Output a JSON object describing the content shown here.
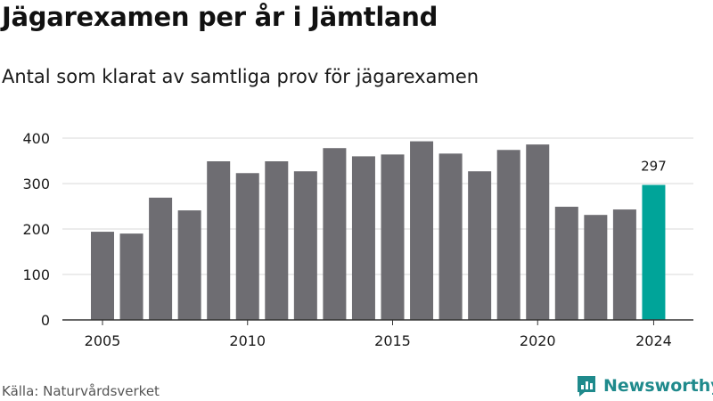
{
  "header": {
    "title": "Jägarexamen per år i Jämtland",
    "subtitle": "Antal som klarat av samtliga prov för jägarexamen"
  },
  "footer": {
    "source": "Källa: Naturvårdsverket",
    "brand": "Newsworthy"
  },
  "colors": {
    "bar": "#6e6d72",
    "highlight": "#00a499",
    "grid": "#d9d9d9",
    "axis": "#333333",
    "brand": "#1f8a8c"
  },
  "chart_data": {
    "type": "bar",
    "x": [
      2005,
      2006,
      2007,
      2008,
      2009,
      2010,
      2011,
      2012,
      2013,
      2014,
      2015,
      2016,
      2017,
      2018,
      2019,
      2020,
      2021,
      2022,
      2023,
      2024
    ],
    "values": [
      194,
      190,
      269,
      241,
      349,
      323,
      349,
      327,
      378,
      360,
      364,
      393,
      366,
      327,
      374,
      386,
      249,
      231,
      243,
      297
    ],
    "x_ticks": [
      "2005",
      "2010",
      "2015",
      "2020",
      "2024"
    ],
    "y_ticks": [
      "0",
      "100",
      "200",
      "300",
      "400"
    ],
    "ylim": [
      0,
      400
    ],
    "grid": true,
    "highlight": {
      "x": 2024,
      "label": "297"
    }
  }
}
